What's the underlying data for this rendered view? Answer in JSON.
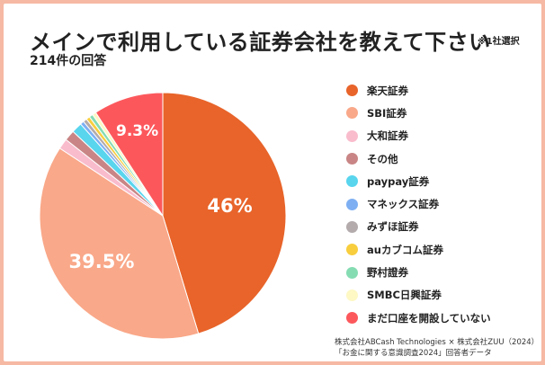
{
  "title": "メインで利用している証券会社を教えて下さい",
  "note": "※1社選択",
  "subtitle": "214件の回答",
  "source": {
    "line1": "株式会社ABCash Technologies × 株式会社ZUU（2024）",
    "line2": "「お金に関する意識調査2024」回答者データ"
  },
  "chart_data": {
    "type": "pie",
    "title": "メインで利用している証券会社を教えて下さい",
    "sample_size": "214件の回答",
    "categories": [
      "楽天証券",
      "SBI証券",
      "大和証券",
      "その他",
      "paypay証券",
      "マネックス証券",
      "みずほ証券",
      "auカブコム証券",
      "野村證券",
      "SMBC日興証券",
      "まだ口座を開設していない"
    ],
    "values": [
      46,
      39.5,
      1.4,
      1.4,
      1.4,
      0.5,
      0.5,
      0.5,
      0.5,
      0.5,
      9.3
    ],
    "value_labels": [
      "46%",
      "39.5%",
      "",
      "",
      "",
      "",
      "",
      "",
      "",
      "",
      "9.3%"
    ],
    "colors": [
      "#e8642a",
      "#f9a889",
      "#f9bccd",
      "#c98585",
      "#59d5ee",
      "#7eaff3",
      "#b3abac",
      "#f8ce3e",
      "#85dcb3",
      "#fdf8c4",
      "#fc585c"
    ],
    "start_angle_deg": 0,
    "direction": "clockwise",
    "legend_position": "right"
  }
}
